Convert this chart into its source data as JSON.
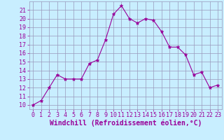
{
  "x": [
    0,
    1,
    2,
    3,
    4,
    5,
    6,
    7,
    8,
    9,
    10,
    11,
    12,
    13,
    14,
    15,
    16,
    17,
    18,
    19,
    20,
    21,
    22,
    23
  ],
  "y": [
    10.0,
    10.5,
    12.0,
    13.5,
    13.0,
    13.0,
    13.0,
    14.8,
    15.2,
    17.5,
    20.5,
    21.5,
    20.0,
    19.5,
    20.0,
    19.8,
    18.5,
    16.7,
    16.7,
    15.8,
    13.5,
    13.8,
    12.0,
    12.3
  ],
  "xlabel": "Windchill (Refroidissement éolien,°C)",
  "ylim": [
    9.5,
    22.0
  ],
  "xlim": [
    -0.5,
    23.5
  ],
  "yticks": [
    10,
    11,
    12,
    13,
    14,
    15,
    16,
    17,
    18,
    19,
    20,
    21
  ],
  "xticks": [
    0,
    1,
    2,
    3,
    4,
    5,
    6,
    7,
    8,
    9,
    10,
    11,
    12,
    13,
    14,
    15,
    16,
    17,
    18,
    19,
    20,
    21,
    22,
    23
  ],
  "line_color": "#990099",
  "marker_color": "#990099",
  "bg_color": "#c8eeff",
  "grid_color": "#9999bb",
  "xlabel_fontsize": 7.0,
  "tick_fontsize": 6.0
}
